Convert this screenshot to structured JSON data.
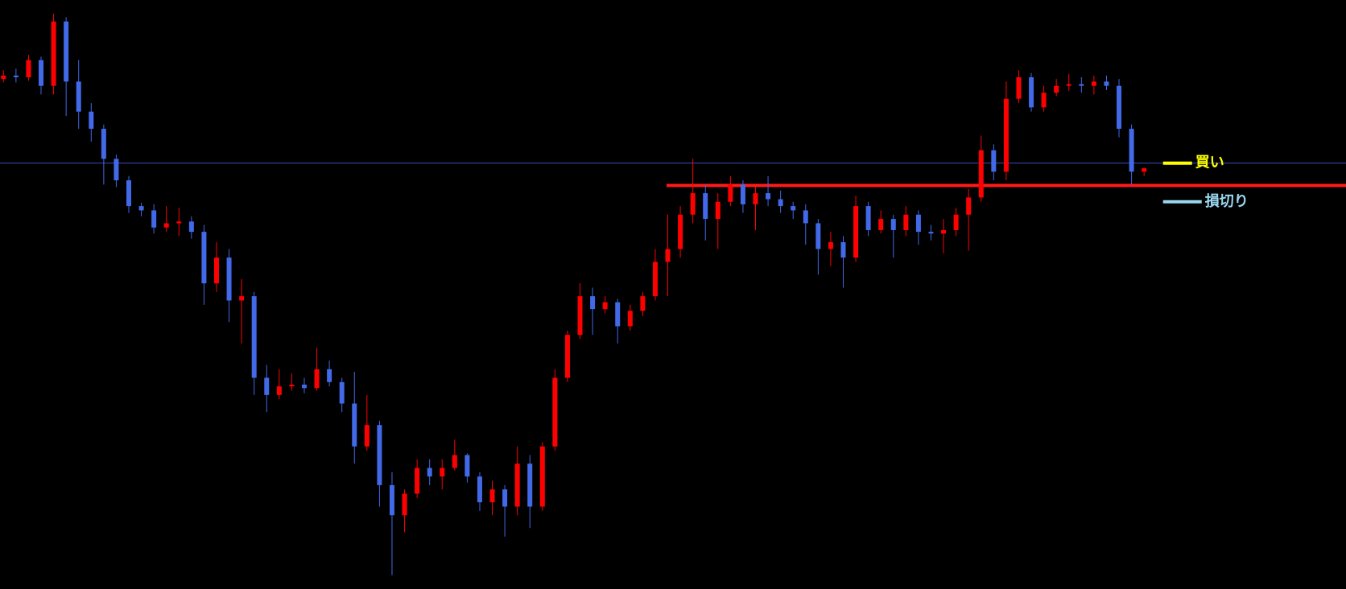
{
  "chart_data": {
    "type": "candlestick",
    "up_color": "#ff0000",
    "down_color": "#4169e8",
    "ylim": [
      14,
      700
    ],
    "ohlc": [
      [
        608,
        618,
        604,
        612
      ],
      [
        612,
        620,
        604,
        610
      ],
      [
        610,
        636,
        606,
        630
      ],
      [
        630,
        634,
        590,
        600
      ],
      [
        600,
        684,
        590,
        675
      ],
      [
        675,
        680,
        565,
        605
      ],
      [
        605,
        630,
        550,
        570
      ],
      [
        570,
        580,
        535,
        550
      ],
      [
        550,
        555,
        485,
        515
      ],
      [
        515,
        520,
        482,
        490
      ],
      [
        490,
        495,
        452,
        460
      ],
      [
        460,
        464,
        448,
        455
      ],
      [
        455,
        462,
        428,
        435
      ],
      [
        435,
        460,
        430,
        440
      ],
      [
        440,
        458,
        425,
        442
      ],
      [
        442,
        448,
        422,
        430
      ],
      [
        430,
        438,
        345,
        370
      ],
      [
        370,
        418,
        360,
        400
      ],
      [
        400,
        410,
        325,
        350
      ],
      [
        350,
        375,
        300,
        355
      ],
      [
        355,
        360,
        240,
        260
      ],
      [
        260,
        275,
        220,
        240
      ],
      [
        240,
        270,
        235,
        250
      ],
      [
        250,
        265,
        245,
        252
      ],
      [
        252,
        260,
        242,
        248
      ],
      [
        248,
        295,
        245,
        270
      ],
      [
        270,
        280,
        250,
        255
      ],
      [
        255,
        260,
        220,
        230
      ],
      [
        230,
        267,
        160,
        180
      ],
      [
        180,
        240,
        175,
        205
      ],
      [
        205,
        210,
        110,
        135
      ],
      [
        135,
        150,
        30,
        100
      ],
      [
        100,
        130,
        80,
        125
      ],
      [
        125,
        165,
        120,
        155
      ],
      [
        155,
        165,
        135,
        145
      ],
      [
        145,
        165,
        130,
        155
      ],
      [
        155,
        188,
        152,
        170
      ],
      [
        170,
        172,
        138,
        145
      ],
      [
        145,
        150,
        105,
        115
      ],
      [
        115,
        140,
        100,
        130
      ],
      [
        130,
        135,
        75,
        110
      ],
      [
        110,
        180,
        100,
        160
      ],
      [
        160,
        170,
        85,
        110
      ],
      [
        110,
        185,
        105,
        180
      ],
      [
        180,
        270,
        175,
        260
      ],
      [
        260,
        315,
        255,
        310
      ],
      [
        310,
        370,
        305,
        355
      ],
      [
        355,
        365,
        310,
        340
      ],
      [
        340,
        355,
        335,
        348
      ],
      [
        348,
        352,
        300,
        320
      ],
      [
        320,
        345,
        315,
        338
      ],
      [
        338,
        360,
        332,
        355
      ],
      [
        355,
        410,
        350,
        395
      ],
      [
        395,
        450,
        355,
        410
      ],
      [
        410,
        460,
        400,
        450
      ],
      [
        450,
        515,
        440,
        475
      ],
      [
        475,
        485,
        420,
        445
      ],
      [
        445,
        475,
        410,
        465
      ],
      [
        465,
        495,
        460,
        485
      ],
      [
        485,
        490,
        452,
        462
      ],
      [
        462,
        482,
        432,
        475
      ],
      [
        475,
        495,
        460,
        468
      ],
      [
        468,
        478,
        452,
        460
      ],
      [
        460,
        465,
        445,
        455
      ],
      [
        455,
        462,
        415,
        440
      ],
      [
        440,
        445,
        380,
        410
      ],
      [
        410,
        430,
        390,
        418
      ],
      [
        418,
        425,
        365,
        400
      ],
      [
        400,
        472,
        395,
        460
      ],
      [
        460,
        465,
        425,
        432
      ],
      [
        432,
        455,
        428,
        445
      ],
      [
        445,
        450,
        400,
        432
      ],
      [
        432,
        460,
        425,
        450
      ],
      [
        450,
        455,
        415,
        430
      ],
      [
        430,
        438,
        420,
        428
      ],
      [
        428,
        445,
        405,
        432
      ],
      [
        432,
        458,
        425,
        450
      ],
      [
        450,
        480,
        408,
        470
      ],
      [
        470,
        542,
        465,
        525
      ],
      [
        525,
        532,
        490,
        500
      ],
      [
        500,
        605,
        490,
        585
      ],
      [
        585,
        618,
        580,
        610
      ],
      [
        610,
        615,
        570,
        575
      ],
      [
        575,
        600,
        570,
        592
      ],
      [
        592,
        608,
        588,
        600
      ],
      [
        600,
        614,
        594,
        602
      ],
      [
        602,
        610,
        592,
        600
      ],
      [
        600,
        612,
        590,
        605
      ],
      [
        605,
        612,
        595,
        600
      ],
      [
        600,
        608,
        540,
        550
      ],
      [
        550,
        555,
        485,
        500
      ],
      [
        500,
        505,
        495,
        504
      ]
    ],
    "levels": [
      {
        "value": 510,
        "color": "#3a4fc0"
      },
      {
        "value": 484,
        "color": "#ff1a1a"
      }
    ],
    "markers": [
      {
        "label": "買い",
        "value": 510,
        "color": "#ffff00"
      },
      {
        "label": "損切り",
        "value": 465,
        "color": "#9ad8f0"
      }
    ]
  }
}
